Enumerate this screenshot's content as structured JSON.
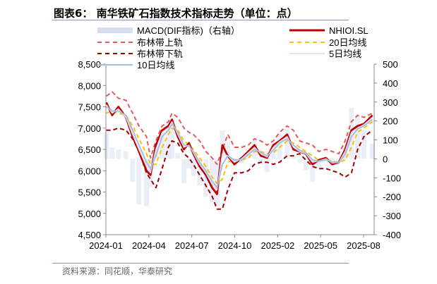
{
  "title": "图表6：  南华铁矿石指数技术指标走势（单位：点）",
  "source": "资料来源：同花顺，华泰研究",
  "chart_data": {
    "type": "line",
    "legend": [
      {
        "name": "MACD(DIF指标)（右轴）",
        "color": "#d6dff0",
        "style": "band"
      },
      {
        "name": "NHIOI.SL",
        "color": "#c00000",
        "style": "solid"
      },
      {
        "name": "布林带上轨",
        "color": "#e85858",
        "style": "dash"
      },
      {
        "name": "20日均线",
        "color": "#ffc000",
        "style": "dash"
      },
      {
        "name": "布林带下轨",
        "color": "#a00000",
        "style": "dash"
      },
      {
        "name": "5日均线",
        "color": "#dde3f3",
        "style": "solid"
      },
      {
        "name": "10日均线",
        "color": "#a9bde0",
        "style": "solid"
      }
    ],
    "legend_placement": "top",
    "x_ticks": [
      "2024-01",
      "2024-04",
      "2024-07",
      "2024-10",
      "2025-02",
      "2025-05",
      "2025-08"
    ],
    "y_left": {
      "min": 4500,
      "max": 8500,
      "ticks": [
        "4,500",
        "5,000",
        "5,500",
        "6,000",
        "6,500",
        "7,000",
        "7,500",
        "8,000",
        "8,500"
      ]
    },
    "y_right": {
      "min": -400,
      "max": 500,
      "ticks": [
        "-400",
        "-300",
        "-200",
        "-100",
        "0",
        "100",
        "200",
        "300",
        "400",
        "500"
      ]
    },
    "x": [
      "2024-01-02",
      "2024-01-15",
      "2024-01-29",
      "2024-02-15",
      "2024-03-01",
      "2024-03-15",
      "2024-04-01",
      "2024-04-10",
      "2024-04-22",
      "2024-05-06",
      "2024-05-20",
      "2024-05-28",
      "2024-06-10",
      "2024-06-24",
      "2024-07-05",
      "2024-07-15",
      "2024-07-29",
      "2024-08-12",
      "2024-08-26",
      "2024-09-06",
      "2024-09-18",
      "2024-09-30",
      "2024-10-15",
      "2024-10-31",
      "2024-11-15",
      "2024-11-29",
      "2024-12-13",
      "2024-12-27",
      "2025-01-10",
      "2025-01-24",
      "2025-02-10",
      "2025-02-24",
      "2025-03-10",
      "2025-03-24",
      "2025-04-08",
      "2025-04-22",
      "2025-05-08",
      "2025-05-22",
      "2025-06-06",
      "2025-06-20",
      "2025-07-04",
      "2025-07-18",
      "2025-08-01",
      "2025-08-20"
    ],
    "series": {
      "NHIOI.SL": [
        7600,
        7300,
        7500,
        7250,
        6800,
        6450,
        6000,
        5900,
        6600,
        6950,
        7050,
        7200,
        6800,
        6500,
        6650,
        6400,
        6100,
        5900,
        5600,
        5450,
        6600,
        6350,
        6150,
        6300,
        6450,
        6600,
        6350,
        6300,
        6600,
        6700,
        6850,
        6500,
        6450,
        6400,
        6150,
        6250,
        6300,
        6150,
        6200,
        6500,
        6950,
        7050,
        7100,
        7300
      ],
      "5日均线": [
        7550,
        7350,
        7450,
        7250,
        6850,
        6500,
        6100,
        5950,
        6500,
        6900,
        7000,
        7150,
        6850,
        6550,
        6600,
        6420,
        6150,
        5950,
        5680,
        5550,
        6400,
        6350,
        6200,
        6280,
        6420,
        6550,
        6400,
        6320,
        6550,
        6680,
        6800,
        6550,
        6450,
        6400,
        6200,
        6230,
        6280,
        6180,
        6200,
        6450,
        6900,
        7000,
        7080,
        7250
      ],
      "10日均线": [
        7500,
        7400,
        7400,
        7300,
        6950,
        6600,
        6200,
        6050,
        6350,
        6800,
        6950,
        7100,
        6900,
        6600,
        6580,
        6450,
        6200,
        6000,
        5750,
        5600,
        6150,
        6350,
        6250,
        6250,
        6380,
        6500,
        6430,
        6350,
        6480,
        6650,
        6750,
        6600,
        6480,
        6420,
        6250,
        6220,
        6260,
        6200,
        6200,
        6380,
        6800,
        6980,
        7050,
        7200
      ],
      "20日均线": [
        7350,
        7400,
        7350,
        7300,
        7050,
        6750,
        6400,
        6150,
        6150,
        6550,
        6850,
        7000,
        6950,
        6700,
        6600,
        6500,
        6300,
        6100,
        5850,
        5700,
        5800,
        6200,
        6250,
        6250,
        6300,
        6450,
        6450,
        6400,
        6420,
        6550,
        6700,
        6650,
        6550,
        6450,
        6350,
        6250,
        6250,
        6220,
        6200,
        6250,
        6550,
        6900,
        7000,
        7150
      ],
      "布林带上轨": [
        7750,
        7850,
        7700,
        7650,
        7350,
        7050,
        6800,
        6300,
        6700,
        7050,
        7150,
        7350,
        7250,
        7000,
        6900,
        6850,
        6700,
        6450,
        6300,
        6150,
        6500,
        6850,
        6550,
        6550,
        6600,
        6750,
        6700,
        6600,
        6700,
        6900,
        7050,
        6950,
        6700,
        6650,
        6600,
        6450,
        6500,
        6450,
        6400,
        6700,
        7150,
        7300,
        7250,
        7350
      ],
      "布林带下轨": [
        6950,
        6950,
        7000,
        6950,
        6750,
        6450,
        5950,
        5800,
        5600,
        6050,
        6550,
        6700,
        6650,
        6400,
        6300,
        6150,
        5900,
        5650,
        5400,
        5100,
        5100,
        5550,
        5950,
        5950,
        6000,
        6150,
        6200,
        6200,
        6150,
        6200,
        6350,
        6350,
        6400,
        6250,
        6100,
        6050,
        6050,
        6000,
        5950,
        5850,
        5950,
        6500,
        6800,
        6950
      ]
    },
    "macd_right_axis": [
      140,
      60,
      50,
      40,
      -120,
      -240,
      -250,
      -150,
      60,
      160,
      170,
      180,
      30,
      -130,
      -50,
      -90,
      -140,
      -200,
      -230,
      -250,
      150,
      90,
      -40,
      -20,
      60,
      100,
      -30,
      -70,
      80,
      130,
      160,
      10,
      -20,
      -60,
      -120,
      -60,
      -20,
      -40,
      -20,
      70,
      270,
      230,
      150,
      80
    ]
  }
}
